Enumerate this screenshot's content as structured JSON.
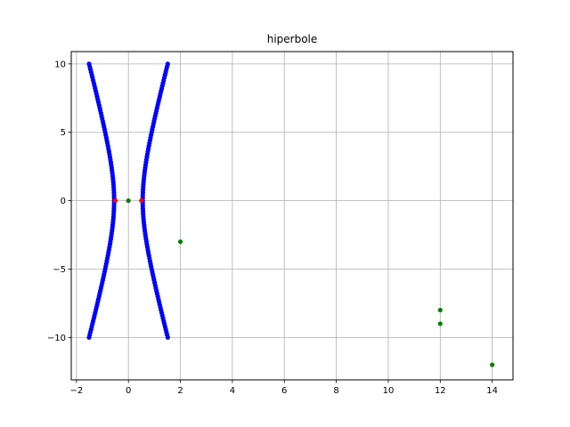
{
  "chart_data": {
    "type": "scatter",
    "title": "hiperbole",
    "xlabel": "",
    "ylabel": "",
    "xlim": [
      -2.2,
      14.8
    ],
    "ylim": [
      -13.1,
      10.9
    ],
    "xticks": [
      -2,
      0,
      2,
      4,
      6,
      8,
      10,
      12,
      14
    ],
    "yticks": [
      10,
      5,
      0,
      -5,
      -10
    ],
    "grid": true,
    "legend": "none",
    "series": [
      {
        "color": "#0000ff",
        "marker": "dot",
        "curve": {
          "kind": "hyperbola",
          "a": 0.55,
          "b": 3.9,
          "y_range": [
            -10,
            10
          ],
          "step": 0.2
        }
      },
      {
        "color": "#ff0000",
        "marker": "dot",
        "points": [
          [
            -0.5,
            0
          ],
          [
            0.5,
            0
          ]
        ]
      },
      {
        "color": "#008000",
        "marker": "dot",
        "points": [
          [
            0,
            0
          ],
          [
            2,
            -3
          ],
          [
            12,
            -8
          ],
          [
            12,
            -9
          ],
          [
            14,
            -12
          ]
        ]
      }
    ]
  }
}
